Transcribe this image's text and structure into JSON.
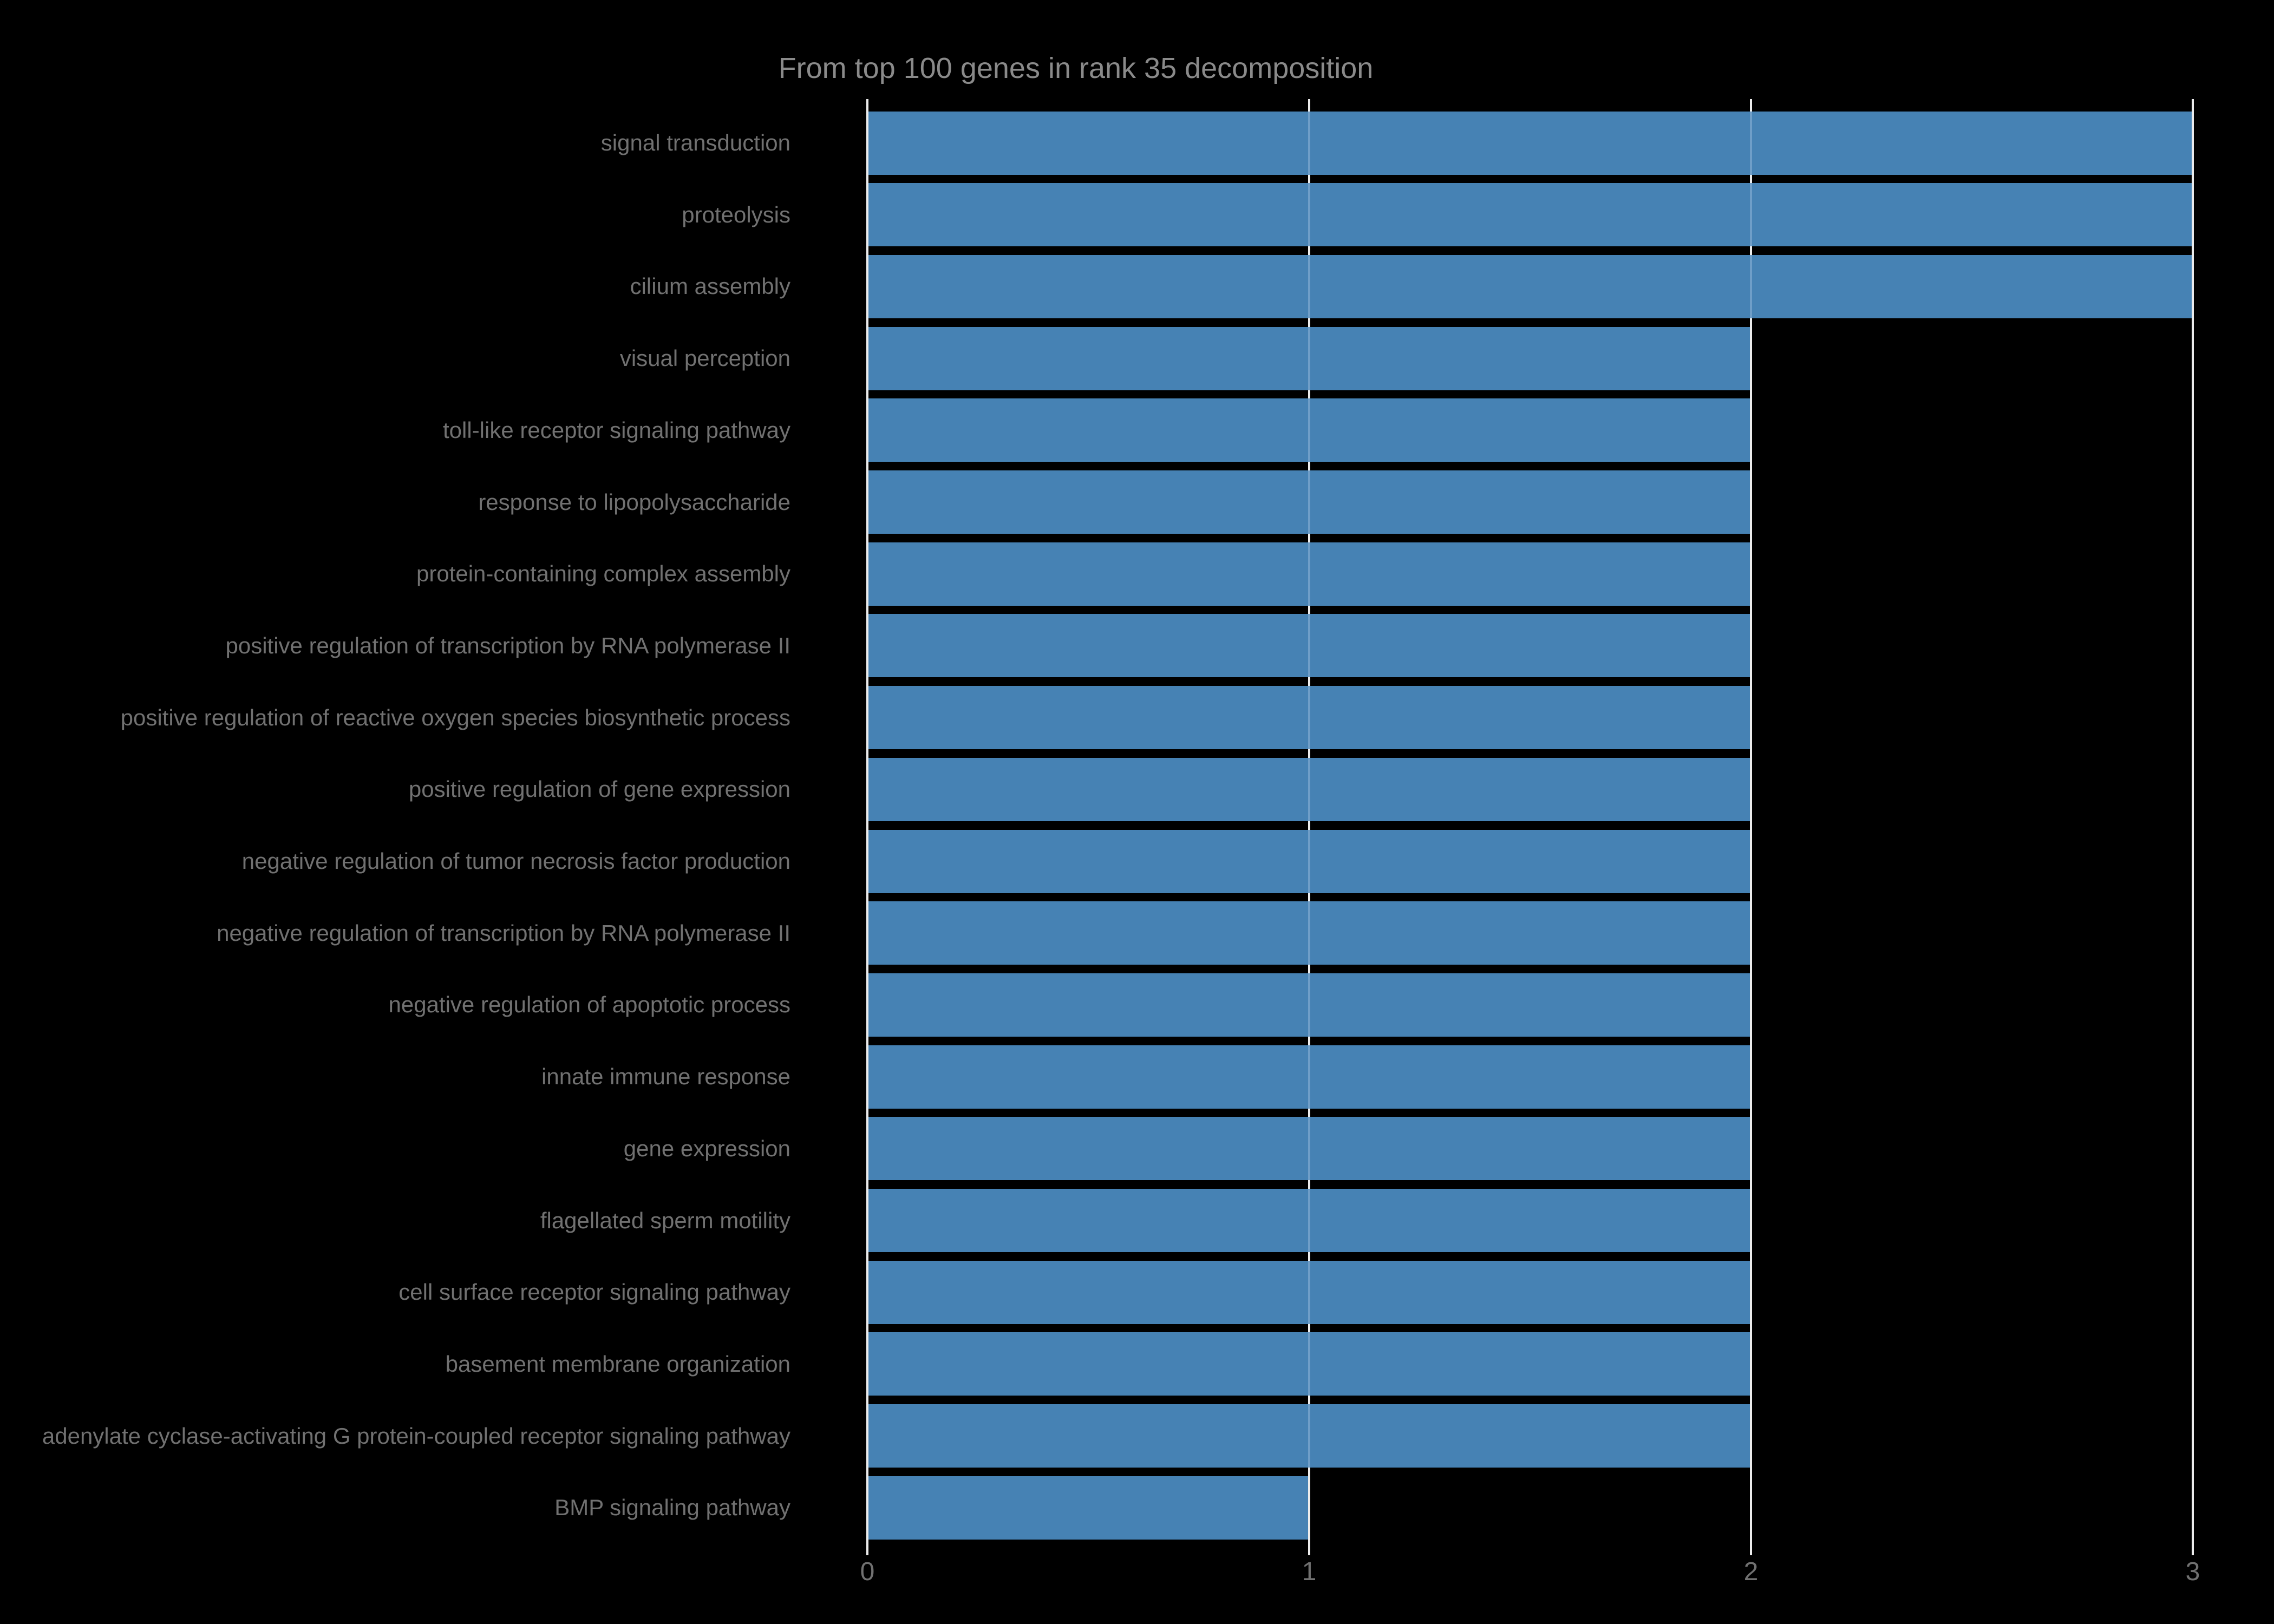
{
  "chart_data": {
    "type": "bar",
    "orientation": "horizontal",
    "title": "From top 100 genes in rank 35 decomposition",
    "xlabel": "",
    "ylabel": "",
    "categories": [
      "signal transduction",
      "proteolysis",
      "cilium assembly",
      "visual perception",
      "toll-like receptor signaling pathway",
      "response to lipopolysaccharide",
      "protein-containing complex assembly",
      "positive regulation of transcription by RNA polymerase II",
      "positive regulation of reactive oxygen species biosynthetic process",
      "positive regulation of gene expression",
      "negative regulation of tumor necrosis factor production",
      "negative regulation of transcription by RNA polymerase II",
      "negative regulation of apoptotic process",
      "innate immune response",
      "gene expression",
      "flagellated sperm motility",
      "cell surface receptor signaling pathway",
      "basement membrane organization",
      "adenylate cyclase-activating G protein-coupled receptor signaling pathway",
      "BMP signaling pathway"
    ],
    "values": [
      3,
      3,
      3,
      2,
      2,
      2,
      2,
      2,
      2,
      2,
      2,
      2,
      2,
      2,
      2,
      2,
      2,
      2,
      2,
      1
    ],
    "xlim": [
      0,
      3
    ],
    "xticks": [
      0,
      1,
      2,
      3
    ],
    "grid": true,
    "gridline_orientation": "vertical",
    "legend": false,
    "colors": {
      "background": "#000000",
      "bar": "#4682b4",
      "bar_gridline_overlap": "#6f9ec8",
      "gridline": "#ececec",
      "title_text": "#8a8a8a",
      "ytick_label_text": "#717171",
      "xtick_label_text": "#717171"
    }
  }
}
